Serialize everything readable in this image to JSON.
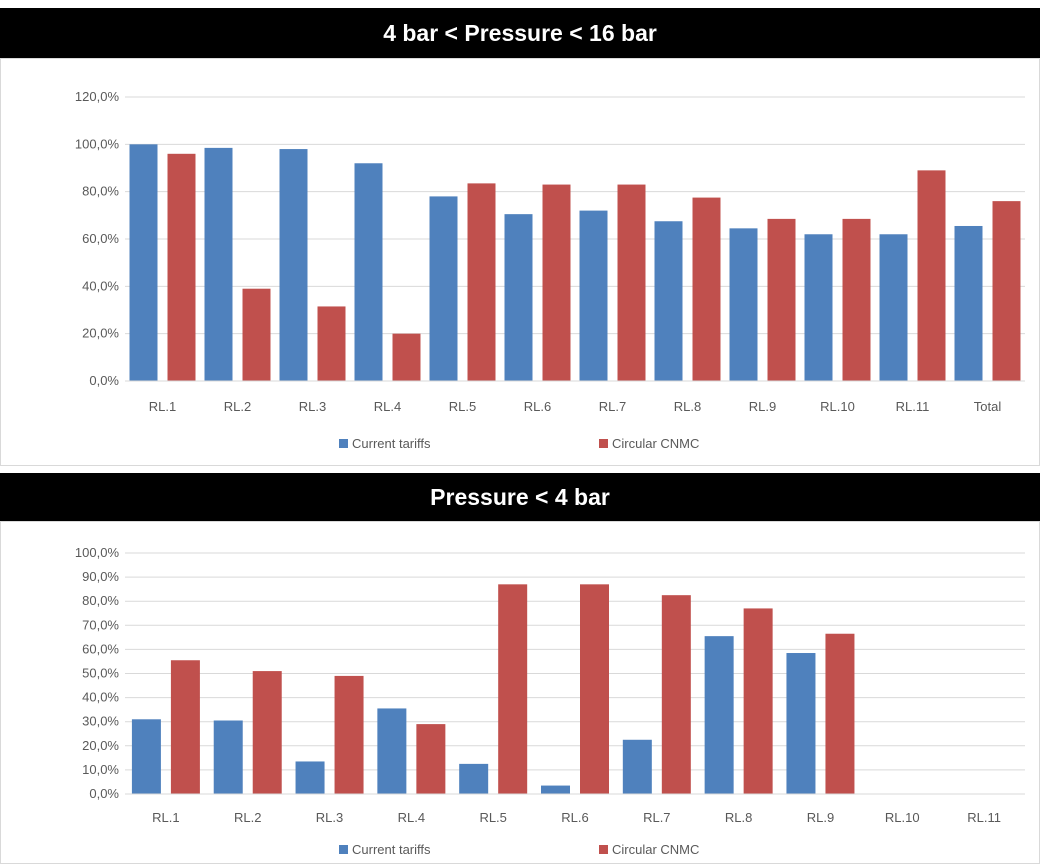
{
  "colors": {
    "current": "#4f81bd",
    "circular": "#c0504d",
    "grid": "#d9d9d9",
    "text": "#595959"
  },
  "chart_data": [
    {
      "type": "bar",
      "title": "4 bar < Pressure < 16 bar",
      "categories": [
        "RL.1",
        "RL.2",
        "RL.3",
        "RL.4",
        "RL.5",
        "RL.6",
        "RL.7",
        "RL.8",
        "RL.9",
        "RL.10",
        "RL.11",
        "Total"
      ],
      "series": [
        {
          "name": "Current tariffs",
          "values": [
            100.0,
            98.5,
            98.0,
            92.0,
            78.0,
            70.5,
            72.0,
            67.5,
            64.5,
            62.0,
            62.0,
            65.5
          ]
        },
        {
          "name": "Circular CNMC",
          "values": [
            96.0,
            39.0,
            31.5,
            20.0,
            83.5,
            83.0,
            83.0,
            77.5,
            68.5,
            68.5,
            89.0,
            76.0
          ]
        }
      ],
      "ylim": [
        0,
        120
      ],
      "yticks": [
        "0,0%",
        "20,0%",
        "40,0%",
        "60,0%",
        "80,0%",
        "100,0%",
        "120,0%"
      ],
      "grid": true,
      "legend": "bottom"
    },
    {
      "type": "bar",
      "title": "Pressure < 4 bar",
      "categories": [
        "RL.1",
        "RL.2",
        "RL.3",
        "RL.4",
        "RL.5",
        "RL.6",
        "RL.7",
        "RL.8",
        "RL.9",
        "RL.10",
        "RL.11"
      ],
      "series": [
        {
          "name": "Current tariffs",
          "values": [
            31.0,
            30.5,
            13.5,
            35.5,
            12.5,
            3.5,
            22.5,
            65.5,
            58.5,
            null,
            null
          ]
        },
        {
          "name": "Circular CNMC",
          "values": [
            55.5,
            51.0,
            49.0,
            29.0,
            87.0,
            87.0,
            82.5,
            77.0,
            66.5,
            null,
            null
          ]
        }
      ],
      "ylim": [
        0,
        100
      ],
      "yticks": [
        "0,0%",
        "10,0%",
        "20,0%",
        "30,0%",
        "40,0%",
        "50,0%",
        "60,0%",
        "70,0%",
        "80,0%",
        "90,0%",
        "100,0%"
      ],
      "grid": true,
      "legend": "bottom"
    }
  ]
}
